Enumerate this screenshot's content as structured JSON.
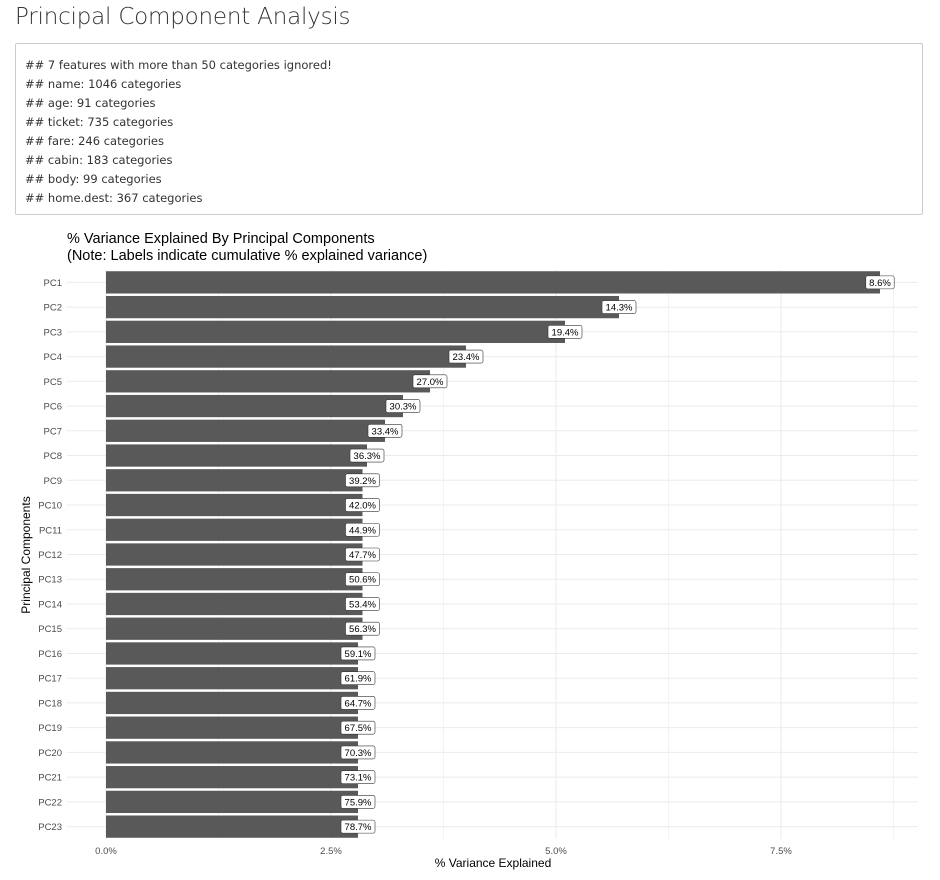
{
  "page": {
    "title": "Principal Component Analysis"
  },
  "console": {
    "lines": [
      "## 7 features with more than 50 categories ignored!",
      "## name: 1046 categories",
      "## age: 91 categories",
      "## ticket: 735 categories",
      "## fare: 246 categories",
      "## cabin: 183 categories",
      "## body: 99 categories",
      "## home.dest: 367 categories"
    ]
  },
  "chart_data": {
    "type": "bar",
    "orientation": "horizontal",
    "title": "% Variance Explained By Principal Components",
    "subtitle": "(Note: Labels indicate cumulative % explained variance)",
    "xlabel": "% Variance Explained",
    "ylabel": "Principal Components",
    "categories": [
      "PC1",
      "PC2",
      "PC3",
      "PC4",
      "PC5",
      "PC6",
      "PC7",
      "PC8",
      "PC9",
      "PC10",
      "PC11",
      "PC12",
      "PC13",
      "PC14",
      "PC15",
      "PC16",
      "PC17",
      "PC18",
      "PC19",
      "PC20",
      "PC21",
      "PC22",
      "PC23"
    ],
    "values": [
      8.6,
      5.7,
      5.1,
      4.0,
      3.6,
      3.3,
      3.1,
      2.9,
      2.85,
      2.85,
      2.85,
      2.85,
      2.85,
      2.85,
      2.85,
      2.8,
      2.8,
      2.8,
      2.8,
      2.8,
      2.8,
      2.8,
      2.8
    ],
    "labels": [
      "8.6%",
      "14.3%",
      "19.4%",
      "23.4%",
      "27.0%",
      "30.3%",
      "33.4%",
      "36.3%",
      "39.2%",
      "42.0%",
      "44.9%",
      "47.7%",
      "50.6%",
      "53.4%",
      "56.3%",
      "59.1%",
      "61.9%",
      "64.7%",
      "67.5%",
      "70.3%",
      "73.1%",
      "75.9%",
      "78.7%"
    ],
    "xticks": [
      0,
      2.5,
      5,
      7.5
    ],
    "xtick_labels": [
      "0.0%",
      "2.5%",
      "5.0%",
      "7.5%"
    ],
    "xlim": [
      0,
      9.0
    ],
    "grid": true,
    "bar_color": "#595959",
    "grid_color": "#ebebeb"
  }
}
